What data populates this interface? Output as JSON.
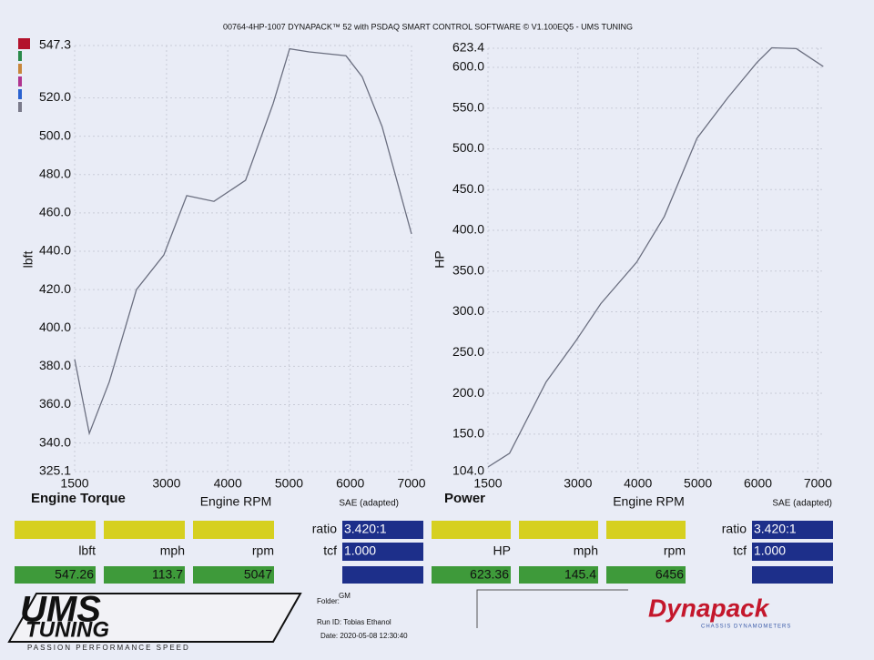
{
  "header": "00764-4HP-1007 DYNAPACK™ 52 with PSDAQ SMART CONTROL SOFTWARE © V1.100EQ5 - UMS TUNING",
  "chart_data": [
    {
      "type": "line",
      "title": "Engine Torque",
      "x_label": "Engine RPM",
      "y_label": "lbft",
      "note": "SAE (adapted)",
      "color": "#6b6f80",
      "grid": true,
      "x": [
        1500,
        1740,
        2065,
        2510,
        2956,
        3330,
        3775,
        4290,
        4740,
        5010,
        5330,
        5930,
        6195,
        6520,
        7000
      ],
      "values": [
        383.7,
        345,
        371.8,
        420,
        438,
        469,
        466,
        477,
        517,
        545.6,
        544,
        542,
        531,
        505,
        449
      ],
      "xlim": [
        1500,
        7000
      ],
      "xticks": [
        1500,
        3000,
        4000,
        5000,
        6000,
        7000
      ],
      "ylim": [
        325.1,
        547.3
      ],
      "yticks": [
        325.1,
        {
          "value": 340,
          "label": "340.0"
        },
        {
          "value": 360,
          "label": "360.0"
        },
        {
          "value": 380,
          "label": "380.0"
        },
        {
          "value": 400,
          "label": "400.0"
        },
        {
          "value": 420,
          "label": "420.0"
        },
        {
          "value": 440,
          "label": "440.0"
        },
        {
          "value": 460,
          "label": "460.0"
        },
        {
          "value": 480,
          "label": "480.0"
        },
        {
          "value": 500,
          "label": "500.0"
        },
        {
          "value": 520,
          "label": "520.0"
        },
        547.3
      ],
      "readouts": [
        {
          "label": "lbft",
          "value": "547.26"
        },
        {
          "label": "mph",
          "value": "113.7"
        },
        {
          "label": "rpm",
          "value": "5047"
        }
      ],
      "ratio": {
        "label": "ratio",
        "value": "3.420:1"
      },
      "tcf": {
        "label": "tcf",
        "value": "1.000"
      }
    },
    {
      "type": "line",
      "title": "Power",
      "x_label": "Engine RPM",
      "y_label": "HP",
      "note": "SAE (adapted)",
      "color": "#6b6f80",
      "grid": true,
      "x": [
        1500,
        1860,
        2470,
        2970,
        3380,
        3980,
        4440,
        4985,
        5500,
        5985,
        6230,
        6640,
        7090
      ],
      "values": [
        109.6,
        126.5,
        214,
        265,
        310,
        361,
        417,
        513,
        563,
        606,
        624,
        623,
        601
      ],
      "xlim": [
        1500,
        7100
      ],
      "xticks": [
        1500,
        3000,
        4000,
        5000,
        6000,
        7000
      ],
      "ylim": [
        104,
        623.4
      ],
      "yticks": [
        {
          "value": 104,
          "label": "104.0"
        },
        {
          "value": 150,
          "label": "150.0"
        },
        {
          "value": 200,
          "label": "200.0"
        },
        {
          "value": 250,
          "label": "250.0"
        },
        {
          "value": 300,
          "label": "300.0"
        },
        {
          "value": 350,
          "label": "350.0"
        },
        {
          "value": 400,
          "label": "400.0"
        },
        {
          "value": 450,
          "label": "450.0"
        },
        {
          "value": 500,
          "label": "500.0"
        },
        {
          "value": 550,
          "label": "550.0"
        },
        {
          "value": 600,
          "label": "600.0"
        },
        623.4
      ],
      "readouts": [
        {
          "label": "HP",
          "value": "623.36"
        },
        {
          "label": "mph",
          "value": "145.4"
        },
        {
          "label": "rpm",
          "value": "6456"
        }
      ],
      "ratio": {
        "label": "ratio",
        "value": "3.420:1"
      },
      "tcf": {
        "label": "tcf",
        "value": "1.000"
      }
    }
  ],
  "footer": {
    "folder_label": "Folder:",
    "folder": "GM",
    "run_id": "Run ID: Tobias Ethanol",
    "date": "Date: 2020-05-08 12:30:40",
    "logo": "UMS",
    "logo_sub": "TUNING",
    "tagline": "PASSION   PERFORMANCE   SPEED",
    "brand": "Dynapack",
    "brand_sub": "CHASSIS DYNAMOMETERS"
  }
}
